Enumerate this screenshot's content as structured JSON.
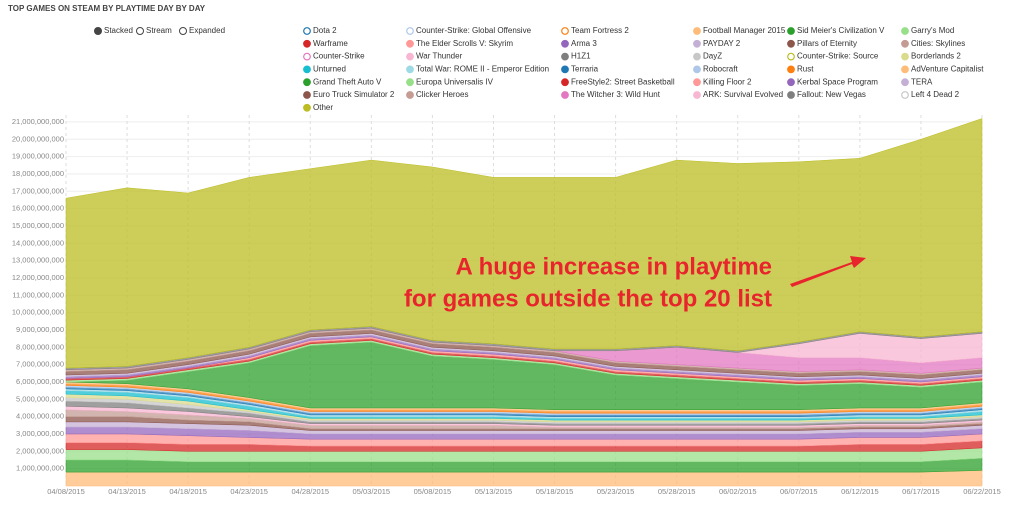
{
  "chart_data": {
    "type": "stacked-area",
    "title": "TOP GAMES ON STEAM BY PLAYTIME DAY BY DAY",
    "controls": [
      "Stacked",
      "Stream",
      "Expanded"
    ],
    "selected_control": 0,
    "annotation": [
      "A huge increase in playtime",
      "for games outside the top 20 list"
    ],
    "annotation_color": "#e8242c",
    "x": [
      "04/08/2015",
      "04/13/2015",
      "04/18/2015",
      "04/23/2015",
      "04/28/2015",
      "05/03/2015",
      "05/08/2015",
      "05/13/2015",
      "05/18/2015",
      "05/23/2015",
      "05/28/2015",
      "06/02/2015",
      "06/07/2015",
      "06/12/2015",
      "06/17/2015",
      "06/22/2015"
    ],
    "ylim": [
      0,
      21400000000
    ],
    "yticks": [
      {
        "value": 1000000000,
        "label": "1,000,000,000"
      },
      {
        "value": 2000000000,
        "label": "2,000,000,000"
      },
      {
        "value": 3000000000,
        "label": "3,000,000,000"
      },
      {
        "value": 4000000000,
        "label": "4,000,000,000"
      },
      {
        "value": 5000000000,
        "label": "5,000,000,000"
      },
      {
        "value": 6000000000,
        "label": "6,000,000,000"
      },
      {
        "value": 7000000000,
        "label": "7,000,000,000"
      },
      {
        "value": 8000000000,
        "label": "8,000,000,000"
      },
      {
        "value": 9000000000,
        "label": "9,000,000,000"
      },
      {
        "value": 10000000000,
        "label": "10,000,000,000"
      },
      {
        "value": 11000000000,
        "label": "11,000,000,000"
      },
      {
        "value": 12000000000,
        "label": "12,000,000,000"
      },
      {
        "value": 13000000000,
        "label": "13,000,000,000"
      },
      {
        "value": 14000000000,
        "label": "14,000,000,000"
      },
      {
        "value": 15000000000,
        "label": "15,000,000,000"
      },
      {
        "value": 16000000000,
        "label": "16,000,000,000"
      },
      {
        "value": 17000000000,
        "label": "17,000,000,000"
      },
      {
        "value": 18000000000,
        "label": "18,000,000,000"
      },
      {
        "value": 19000000000,
        "label": "19,000,000,000"
      },
      {
        "value": 20000000000,
        "label": "20,000,000,000"
      },
      {
        "value": 21000000000,
        "label": "21,000,000,000"
      }
    ],
    "grid": true,
    "series": [
      {
        "name": "Dota 2",
        "color": "#1f77b4",
        "disabled": true
      },
      {
        "name": "Counter-Strike: Global Offensive",
        "color": "#aec7e8",
        "disabled": true
      },
      {
        "name": "Team Fortress 2",
        "color": "#ff7f0e",
        "disabled": true
      },
      {
        "name": "Football Manager 2015",
        "color": "#ffbb78",
        "values": [
          800000000,
          800000000,
          800000000,
          800000000,
          800000000,
          800000000,
          800000000,
          800000000,
          800000000,
          800000000,
          800000000,
          800000000,
          800000000,
          800000000,
          800000000,
          900000000
        ]
      },
      {
        "name": "Sid Meier's Civilization V",
        "color": "#2ca02c",
        "values": [
          700000000,
          700000000,
          600000000,
          600000000,
          600000000,
          600000000,
          600000000,
          600000000,
          600000000,
          600000000,
          600000000,
          600000000,
          600000000,
          600000000,
          600000000,
          700000000
        ]
      },
      {
        "name": "Garry's Mod",
        "color": "#98df8a",
        "values": [
          600000000,
          600000000,
          600000000,
          600000000,
          600000000,
          600000000,
          600000000,
          600000000,
          600000000,
          600000000,
          600000000,
          600000000,
          600000000,
          600000000,
          600000000,
          600000000
        ]
      },
      {
        "name": "Warframe",
        "color": "#d62728",
        "values": [
          400000000,
          400000000,
          400000000,
          400000000,
          300000000,
          300000000,
          300000000,
          300000000,
          300000000,
          300000000,
          300000000,
          300000000,
          300000000,
          400000000,
          400000000,
          400000000
        ]
      },
      {
        "name": "The Elder Scrolls V: Skyrim",
        "color": "#ff9896",
        "values": [
          500000000,
          500000000,
          500000000,
          400000000,
          400000000,
          400000000,
          400000000,
          400000000,
          400000000,
          400000000,
          400000000,
          400000000,
          400000000,
          400000000,
          400000000,
          400000000
        ]
      },
      {
        "name": "Arma 3",
        "color": "#9467bd",
        "values": [
          400000000,
          400000000,
          400000000,
          400000000,
          300000000,
          300000000,
          300000000,
          300000000,
          300000000,
          300000000,
          300000000,
          300000000,
          300000000,
          300000000,
          300000000,
          300000000
        ]
      },
      {
        "name": "PAYDAY 2",
        "color": "#c5b0d5",
        "values": [
          300000000,
          300000000,
          300000000,
          300000000,
          200000000,
          200000000,
          200000000,
          200000000,
          200000000,
          200000000,
          200000000,
          200000000,
          200000000,
          200000000,
          200000000,
          200000000
        ]
      },
      {
        "name": "Pillars of Eternity",
        "color": "#8c564b",
        "values": [
          300000000,
          300000000,
          200000000,
          200000000,
          100000000,
          100000000,
          100000000,
          100000000,
          100000000,
          100000000,
          100000000,
          100000000,
          100000000,
          100000000,
          100000000,
          100000000
        ]
      },
      {
        "name": "Cities: Skylines",
        "color": "#c49c94",
        "values": [
          400000000,
          300000000,
          300000000,
          200000000,
          200000000,
          200000000,
          200000000,
          200000000,
          100000000,
          100000000,
          100000000,
          100000000,
          100000000,
          100000000,
          100000000,
          100000000
        ]
      },
      {
        "name": "Counter-Strike",
        "color": "#e377c2",
        "disabled": true
      },
      {
        "name": "War Thunder",
        "color": "#f7b6d2",
        "values": [
          200000000,
          200000000,
          200000000,
          100000000,
          100000000,
          100000000,
          100000000,
          100000000,
          100000000,
          100000000,
          100000000,
          100000000,
          100000000,
          100000000,
          100000000,
          100000000
        ]
      },
      {
        "name": "H1Z1",
        "color": "#7f7f7f",
        "values": [
          300000000,
          300000000,
          200000000,
          200000000,
          100000000,
          100000000,
          100000000,
          100000000,
          100000000,
          100000000,
          100000000,
          100000000,
          100000000,
          100000000,
          100000000,
          100000000
        ]
      },
      {
        "name": "DayZ",
        "color": "#c7c7c7",
        "values": [
          200000000,
          200000000,
          200000000,
          100000000,
          100000000,
          100000000,
          100000000,
          100000000,
          100000000,
          100000000,
          100000000,
          100000000,
          100000000,
          100000000,
          100000000,
          100000000
        ]
      },
      {
        "name": "Counter-Strike: Source",
        "color": "#bcbd22",
        "disabled": true
      },
      {
        "name": "Borderlands 2",
        "color": "#dbdb8d",
        "values": [
          200000000,
          200000000,
          200000000,
          100000000,
          100000000,
          100000000,
          100000000,
          100000000,
          100000000,
          100000000,
          100000000,
          100000000,
          100000000,
          100000000,
          100000000,
          100000000
        ]
      },
      {
        "name": "Unturned",
        "color": "#17becf",
        "values": [
          200000000,
          200000000,
          200000000,
          200000000,
          100000000,
          100000000,
          100000000,
          100000000,
          100000000,
          100000000,
          100000000,
          100000000,
          100000000,
          100000000,
          100000000,
          200000000
        ]
      },
      {
        "name": "Total War: ROME II - Emperor Edition",
        "color": "#9edae5",
        "values": [
          100000000,
          100000000,
          100000000,
          100000000,
          100000000,
          100000000,
          100000000,
          100000000,
          100000000,
          100000000,
          100000000,
          100000000,
          100000000,
          100000000,
          100000000,
          100000000
        ]
      },
      {
        "name": "Terraria",
        "color": "#1f77b4",
        "values": [
          100000000,
          100000000,
          100000000,
          100000000,
          100000000,
          100000000,
          100000000,
          100000000,
          100000000,
          100000000,
          100000000,
          100000000,
          100000000,
          100000000,
          100000000,
          100000000
        ]
      },
      {
        "name": "Robocraft",
        "color": "#aec7e8",
        "values": [
          100000000,
          100000000,
          100000000,
          100000000,
          100000000,
          100000000,
          100000000,
          100000000,
          100000000,
          100000000,
          100000000,
          100000000,
          100000000,
          100000000,
          100000000,
          100000000
        ]
      },
      {
        "name": "Rust",
        "color": "#ff7f0e",
        "values": [
          100000000,
          100000000,
          100000000,
          100000000,
          100000000,
          100000000,
          100000000,
          100000000,
          100000000,
          100000000,
          100000000,
          100000000,
          100000000,
          100000000,
          100000000,
          100000000
        ]
      },
      {
        "name": "AdVenture Capitalist",
        "color": "#ffbb78",
        "values": [
          100000000,
          100000000,
          100000000,
          100000000,
          100000000,
          100000000,
          100000000,
          100000000,
          100000000,
          100000000,
          100000000,
          100000000,
          100000000,
          100000000,
          100000000,
          100000000
        ]
      },
      {
        "name": "Grand Theft Auto V",
        "color": "#2ca02c",
        "values": [
          0,
          200000000,
          1000000000,
          2000000000,
          3600000000,
          3800000000,
          3000000000,
          2800000000,
          2600000000,
          2000000000,
          1800000000,
          1600000000,
          1400000000,
          1400000000,
          1200000000,
          1200000000
        ]
      },
      {
        "name": "Europa Universalis IV",
        "color": "#98df8a",
        "values": [
          100000000,
          100000000,
          100000000,
          100000000,
          100000000,
          100000000,
          100000000,
          100000000,
          100000000,
          100000000,
          100000000,
          100000000,
          100000000,
          100000000,
          100000000,
          100000000
        ]
      },
      {
        "name": "FreeStyle2: Street Basketball",
        "color": "#d62728",
        "values": [
          100000000,
          100000000,
          100000000,
          100000000,
          100000000,
          100000000,
          100000000,
          100000000,
          100000000,
          100000000,
          100000000,
          100000000,
          100000000,
          100000000,
          100000000,
          100000000
        ]
      },
      {
        "name": "Killing Floor 2",
        "color": "#ff9896",
        "values": [
          0,
          0,
          0,
          100000000,
          100000000,
          100000000,
          100000000,
          100000000,
          100000000,
          100000000,
          100000000,
          100000000,
          100000000,
          100000000,
          100000000,
          100000000
        ]
      },
      {
        "name": "Kerbal Space Program",
        "color": "#9467bd",
        "values": [
          100000000,
          100000000,
          100000000,
          100000000,
          100000000,
          100000000,
          100000000,
          100000000,
          100000000,
          100000000,
          100000000,
          100000000,
          100000000,
          100000000,
          100000000,
          100000000
        ]
      },
      {
        "name": "TERA",
        "color": "#c5b0d5",
        "values": [
          100000000,
          100000000,
          100000000,
          100000000,
          100000000,
          100000000,
          100000000,
          100000000,
          100000000,
          100000000,
          100000000,
          100000000,
          100000000,
          100000000,
          100000000,
          100000000
        ]
      },
      {
        "name": "Euro Truck Simulator 2",
        "color": "#8c564b",
        "values": [
          200000000,
          200000000,
          200000000,
          200000000,
          200000000,
          200000000,
          200000000,
          200000000,
          200000000,
          200000000,
          200000000,
          200000000,
          200000000,
          200000000,
          200000000,
          200000000
        ]
      },
      {
        "name": "Clicker Heroes",
        "color": "#c49c94",
        "values": [
          100000000,
          100000000,
          100000000,
          100000000,
          100000000,
          100000000,
          100000000,
          100000000,
          100000000,
          100000000,
          100000000,
          100000000,
          100000000,
          100000000,
          100000000,
          100000000
        ]
      },
      {
        "name": "The Witcher 3: Wild Hunt",
        "color": "#e377c2",
        "values": [
          0,
          0,
          0,
          0,
          0,
          0,
          0,
          0,
          0,
          600000000,
          1000000000,
          900000000,
          800000000,
          700000000,
          600000000,
          600000000
        ]
      },
      {
        "name": "ARK: Survival Evolved",
        "color": "#f7b6d2",
        "values": [
          0,
          0,
          0,
          0,
          0,
          0,
          0,
          0,
          0,
          0,
          0,
          0,
          800000000,
          1400000000,
          1400000000,
          1400000000
        ]
      },
      {
        "name": "Fallout: New Vegas",
        "color": "#7f7f7f",
        "values": [
          100000000,
          100000000,
          100000000,
          100000000,
          100000000,
          100000000,
          100000000,
          100000000,
          100000000,
          100000000,
          100000000,
          100000000,
          100000000,
          100000000,
          100000000,
          100000000
        ]
      },
      {
        "name": "Left 4 Dead 2",
        "color": "#c7c7c7",
        "disabled": true
      },
      {
        "name": "Other",
        "color": "#bcbd22",
        "values": [
          9800000000,
          10300000000,
          9500000000,
          9800000000,
          9300000000,
          9600000000,
          10000000000,
          9600000000,
          9900000000,
          9900000000,
          10700000000,
          10800000000,
          10400000000,
          10000000000,
          11400000000,
          12300000000
        ]
      }
    ]
  }
}
